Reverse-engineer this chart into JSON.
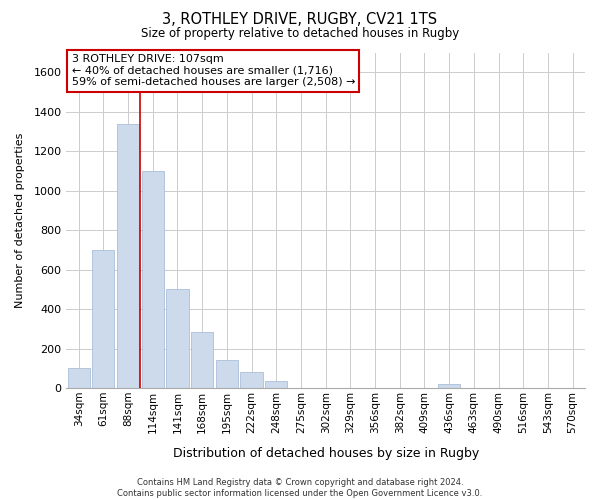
{
  "title": "3, ROTHLEY DRIVE, RUGBY, CV21 1TS",
  "subtitle": "Size of property relative to detached houses in Rugby",
  "xlabel": "Distribution of detached houses by size in Rugby",
  "ylabel": "Number of detached properties",
  "bar_labels": [
    "34sqm",
    "61sqm",
    "88sqm",
    "114sqm",
    "141sqm",
    "168sqm",
    "195sqm",
    "222sqm",
    "248sqm",
    "275sqm",
    "302sqm",
    "329sqm",
    "356sqm",
    "382sqm",
    "409sqm",
    "436sqm",
    "463sqm",
    "490sqm",
    "516sqm",
    "543sqm",
    "570sqm"
  ],
  "bar_values": [
    100,
    700,
    1340,
    1100,
    500,
    285,
    143,
    80,
    35,
    0,
    0,
    0,
    0,
    0,
    0,
    20,
    0,
    0,
    0,
    0,
    0
  ],
  "bar_color": "#ccdaeb",
  "bar_edge_color": "#aabfda",
  "vline_color": "#cc0000",
  "ylim": [
    0,
    1700
  ],
  "yticks": [
    0,
    200,
    400,
    600,
    800,
    1000,
    1200,
    1400,
    1600
  ],
  "annotation_title": "3 ROTHLEY DRIVE: 107sqm",
  "annotation_line1": "← 40% of detached houses are smaller (1,716)",
  "annotation_line2": "59% of semi-detached houses are larger (2,508) →",
  "annotation_box_color": "#ffffff",
  "annotation_border_color": "#cc0000",
  "footer_line1": "Contains HM Land Registry data © Crown copyright and database right 2024.",
  "footer_line2": "Contains public sector information licensed under the Open Government Licence v3.0.",
  "background_color": "#ffffff",
  "grid_color": "#cccccc"
}
